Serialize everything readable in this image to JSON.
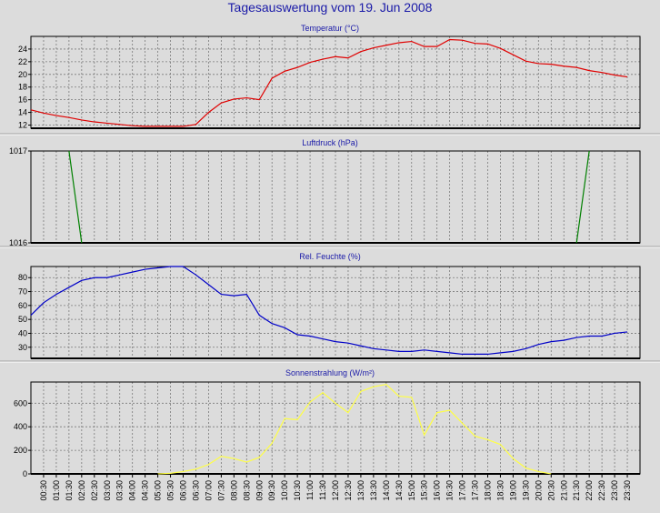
{
  "title": "Tagesauswertung vom 19. Jun 2008",
  "colors": {
    "background": "#dcdcdc",
    "title": "#1a1aa8",
    "frame": "#000000"
  },
  "chart_data": [
    {
      "type": "line",
      "title": "Temperatur (°C)",
      "color": "#e00000",
      "ylim": [
        11.5,
        26
      ],
      "yticks": [
        12,
        14,
        16,
        18,
        20,
        22,
        24
      ],
      "grid": true,
      "x": [
        "00:00",
        "00:30",
        "01:00",
        "01:30",
        "02:00",
        "02:30",
        "03:00",
        "03:30",
        "04:00",
        "04:30",
        "05:00",
        "05:30",
        "06:00",
        "06:30",
        "07:00",
        "07:30",
        "08:00",
        "08:30",
        "09:00",
        "09:30",
        "10:00",
        "10:30",
        "11:00",
        "11:30",
        "12:00",
        "12:30",
        "13:00",
        "13:30",
        "14:00",
        "14:30",
        "15:00",
        "15:30",
        "16:00",
        "16:30",
        "17:00",
        "17:30",
        "18:00",
        "18:30",
        "19:00",
        "19:30",
        "20:00",
        "20:30",
        "21:00",
        "21:30",
        "22:00",
        "22:30",
        "23:00",
        "23:30"
      ],
      "values": [
        14.4,
        13.9,
        13.5,
        13.2,
        12.8,
        12.5,
        12.3,
        12.1,
        11.9,
        11.8,
        11.8,
        11.8,
        11.8,
        12.1,
        14,
        15.5,
        16.1,
        16.3,
        16,
        19.4,
        20.5,
        21.1,
        21.9,
        22.4,
        22.8,
        22.6,
        23.6,
        24.2,
        24.6,
        25,
        25.2,
        24.4,
        24.4,
        25.5,
        25.4,
        24.9,
        24.8,
        24.1,
        23.1,
        22.1,
        21.7,
        21.6,
        21.3,
        21.1,
        20.6,
        20.3,
        19.9,
        19.6
      ]
    },
    {
      "type": "line",
      "title": "Luftdruck (hPa)",
      "color": "#008000",
      "ylim": [
        1016,
        1017
      ],
      "yticks": [
        1016,
        1017
      ],
      "grid": true,
      "x": [
        "01:30",
        "02:00",
        "21:30",
        "22:00"
      ],
      "values": [
        1017,
        1016,
        1016,
        1017
      ]
    },
    {
      "type": "line",
      "title": "Rel. Feuchte (%)",
      "color": "#0000c8",
      "ylim": [
        22,
        88
      ],
      "yticks": [
        30,
        40,
        50,
        60,
        70,
        80
      ],
      "grid": true,
      "x": [
        "00:00",
        "00:30",
        "01:00",
        "01:30",
        "02:00",
        "02:30",
        "03:00",
        "03:30",
        "04:00",
        "04:30",
        "05:00",
        "05:30",
        "06:00",
        "06:30",
        "07:00",
        "07:30",
        "08:00",
        "08:30",
        "09:00",
        "09:30",
        "10:00",
        "10:30",
        "11:00",
        "11:30",
        "12:00",
        "12:30",
        "13:00",
        "13:30",
        "14:00",
        "14:30",
        "15:00",
        "15:30",
        "16:00",
        "16:30",
        "17:00",
        "17:30",
        "18:00",
        "18:30",
        "19:00",
        "19:30",
        "20:00",
        "20:30",
        "21:00",
        "21:30",
        "22:00",
        "22:30",
        "23:00",
        "23:30"
      ],
      "values": [
        53,
        62,
        68,
        73,
        78,
        80,
        80,
        82,
        84,
        86,
        87,
        88,
        88,
        82,
        75,
        68,
        67,
        68,
        53,
        47,
        44,
        39,
        38,
        36,
        34,
        33,
        31,
        29,
        28,
        27,
        27,
        28,
        27,
        26,
        25,
        25,
        25,
        26,
        27,
        29,
        32,
        34,
        35,
        37,
        38,
        38,
        40,
        41
      ]
    },
    {
      "type": "line",
      "title": "Sonnenstrahlung (W/m²)",
      "color": "#ffff44",
      "ylim": [
        0,
        780
      ],
      "yticks": [
        0,
        200,
        400,
        600
      ],
      "grid": true,
      "x": [
        "05:00",
        "05:30",
        "06:00",
        "06:30",
        "07:00",
        "07:30",
        "08:00",
        "08:30",
        "09:00",
        "09:30",
        "10:00",
        "10:30",
        "11:00",
        "11:30",
        "12:00",
        "12:30",
        "13:00",
        "13:30",
        "14:00",
        "14:30",
        "15:00",
        "15:30",
        "16:00",
        "16:30",
        "17:00",
        "17:30",
        "18:00",
        "18:30",
        "19:00",
        "19:30",
        "20:00",
        "20:30"
      ],
      "values": [
        0,
        5,
        20,
        40,
        80,
        150,
        130,
        100,
        140,
        260,
        470,
        460,
        610,
        690,
        600,
        520,
        700,
        740,
        760,
        660,
        650,
        330,
        520,
        540,
        430,
        320,
        290,
        250,
        130,
        50,
        20,
        0
      ]
    }
  ],
  "x_axis": {
    "ticks": [
      "00:30",
      "01:00",
      "01:30",
      "02:00",
      "02:30",
      "03:00",
      "03:30",
      "04:00",
      "04:30",
      "05:00",
      "05:30",
      "06:00",
      "06:30",
      "07:00",
      "07:30",
      "08:00",
      "08:30",
      "09:00",
      "09:30",
      "10:00",
      "10:30",
      "11:00",
      "11:30",
      "12:00",
      "12:30",
      "13:00",
      "13:30",
      "14:00",
      "14:30",
      "15:00",
      "15:30",
      "16:00",
      "16:30",
      "17:00",
      "17:30",
      "18:00",
      "18:30",
      "19:00",
      "19:30",
      "20:00",
      "20:30",
      "21:00",
      "21:30",
      "22:00",
      "22:30",
      "23:00",
      "23:30"
    ]
  }
}
